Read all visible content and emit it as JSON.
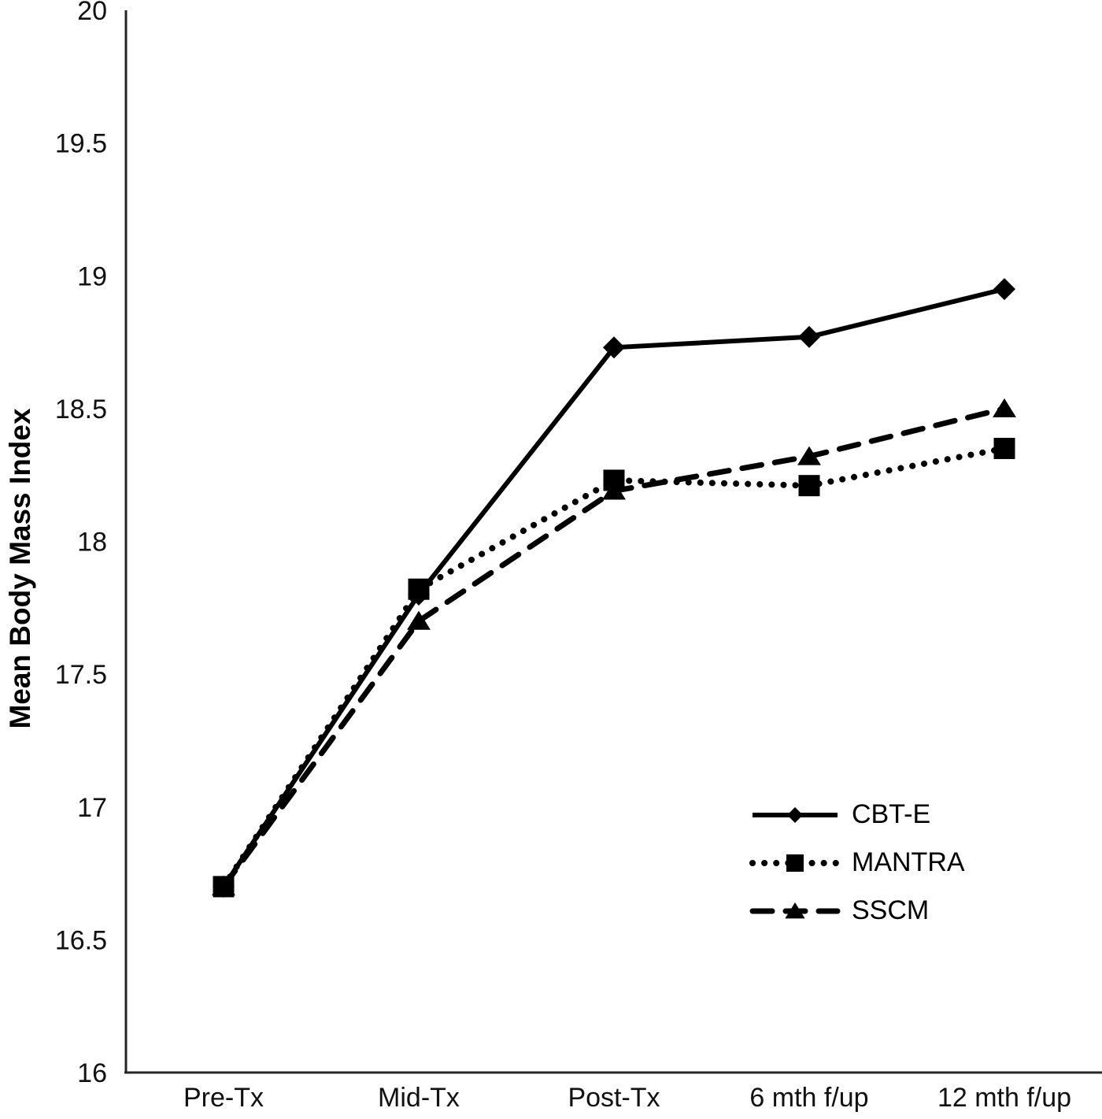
{
  "chart_data": {
    "type": "line",
    "title": "",
    "xlabel": "",
    "ylabel": "Mean Body Mass Index",
    "categories": [
      "Pre-Tx",
      "Mid-Tx",
      "Post-Tx",
      "6 mth f/up",
      "12 mth f/up"
    ],
    "ylim": [
      16,
      20
    ],
    "yticks": [
      16,
      16.5,
      17,
      17.5,
      18,
      18.5,
      19,
      19.5,
      20
    ],
    "grid": false,
    "legend_position": "inside-bottom-right",
    "line_color": "#000000",
    "axis_color": "#262626",
    "series": [
      {
        "name": "CBT-E",
        "marker": "diamond",
        "line": "solid",
        "values": [
          16.7,
          17.8,
          18.73,
          18.77,
          18.95
        ]
      },
      {
        "name": "MANTRA",
        "marker": "square",
        "line": "dotted",
        "values": [
          16.7,
          17.82,
          18.23,
          18.21,
          18.35
        ]
      },
      {
        "name": "SSCM",
        "marker": "triangle",
        "line": "dashed",
        "values": [
          16.7,
          17.7,
          18.19,
          18.32,
          18.5
        ]
      }
    ]
  }
}
